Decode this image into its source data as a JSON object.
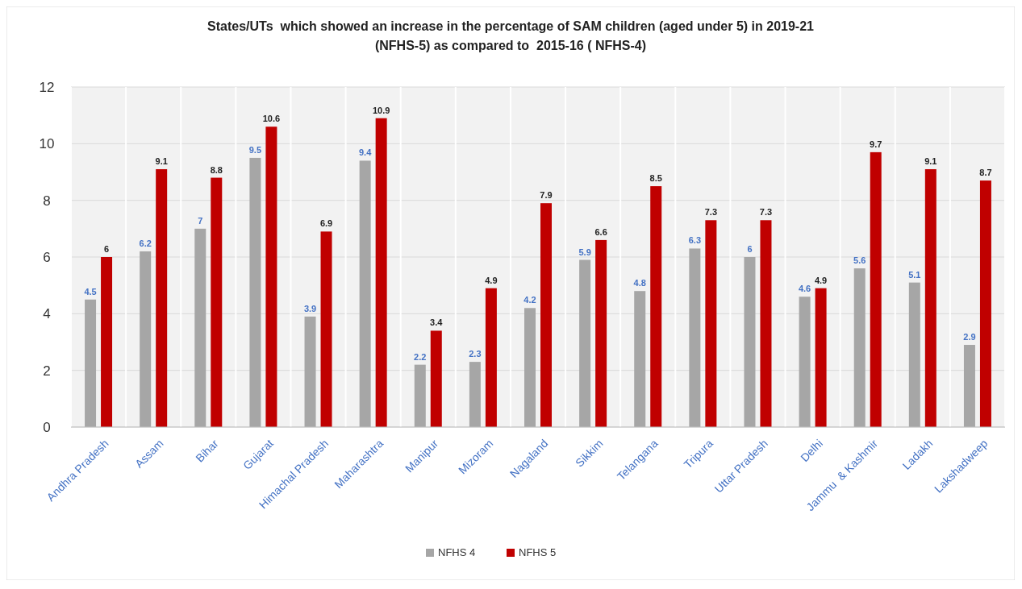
{
  "chart_data": {
    "type": "bar",
    "title": "States/UTs  which showed an increase in the percentage of SAM children (aged under 5) in 2019-21 (NFHS-5) as compared to  2015-16 ( NFHS-4)",
    "categories": [
      "Andhra Pradesh",
      "Assam",
      "Bihar",
      "Gujarat",
      "Himachal Pradesh",
      "Maharashtra",
      "Manipur",
      "Mizoram",
      "Nagaland",
      "Sikkim",
      "Telangana",
      "Tripura",
      "Uttar Pradesh",
      "Delhi",
      "Jammu  & Kashmir",
      "Ladakh",
      "Lakshadweep"
    ],
    "series": [
      {
        "name": "NFHS 4",
        "color": "#a6a6a6",
        "values": [
          4.5,
          6.2,
          7,
          9.5,
          3.9,
          9.4,
          2.2,
          2.3,
          4.2,
          5.9,
          4.8,
          6.3,
          6,
          4.6,
          5.6,
          5.1,
          2.9
        ]
      },
      {
        "name": "NFHS 5",
        "color": "#c00000",
        "values": [
          6,
          9.1,
          8.8,
          10.6,
          6.9,
          10.9,
          3.4,
          4.9,
          7.9,
          6.6,
          8.5,
          7.3,
          7.3,
          4.9,
          9.7,
          9.1,
          8.7
        ]
      }
    ],
    "ylim": [
      0,
      12
    ],
    "yticks": [
      0,
      2,
      4,
      6,
      8,
      10,
      12
    ],
    "grid": true,
    "data_labels": true,
    "legend": "bottom"
  }
}
